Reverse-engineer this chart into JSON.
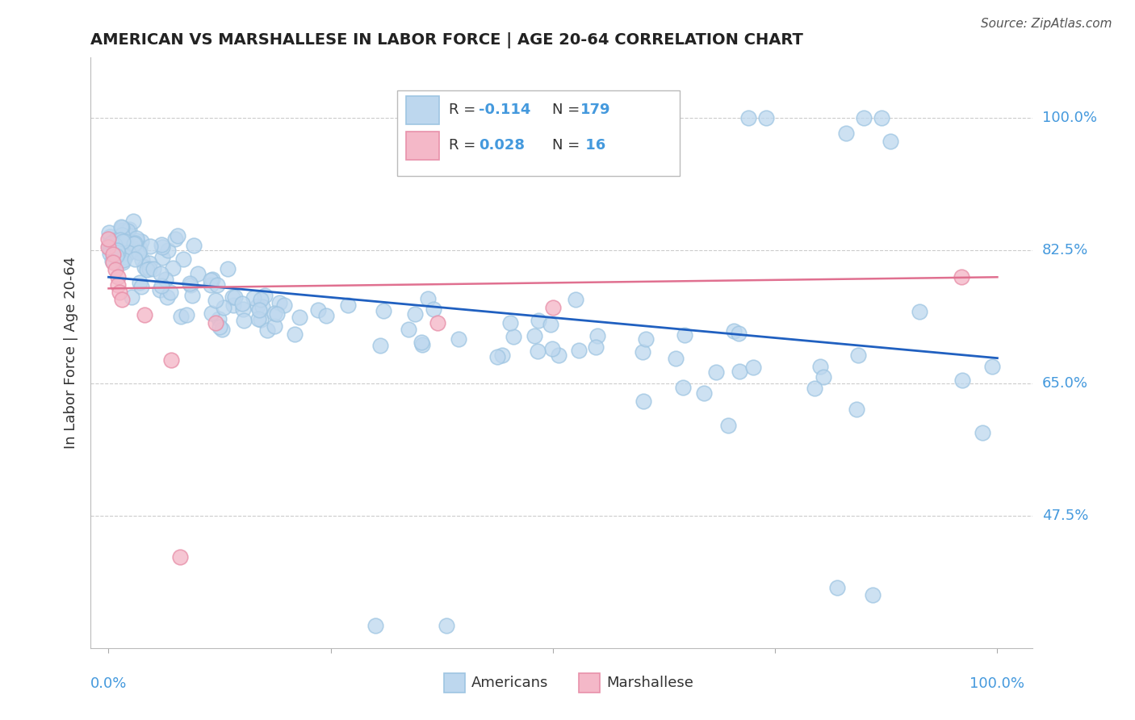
{
  "title": "AMERICAN VS MARSHALLESE IN LABOR FORCE | AGE 20-64 CORRELATION CHART",
  "source": "Source: ZipAtlas.com",
  "ylabel": "In Labor Force | Age 20-64",
  "yticks": [
    0.475,
    0.65,
    0.825,
    1.0
  ],
  "ytick_labels": [
    "47.5%",
    "65.0%",
    "82.5%",
    "100.0%"
  ],
  "xlim": [
    -0.02,
    1.04
  ],
  "ylim": [
    0.3,
    1.08
  ],
  "american_face_color": "#bdd7ee",
  "american_edge_color": "#9ec5e2",
  "marshallese_face_color": "#f4b8c8",
  "marshallese_edge_color": "#e891aa",
  "american_line_color": "#2060c0",
  "marshallese_line_color": "#e07090",
  "background_color": "#ffffff",
  "grid_color": "#cccccc",
  "tick_color": "#4499dd",
  "title_color": "#222222",
  "source_color": "#555555"
}
